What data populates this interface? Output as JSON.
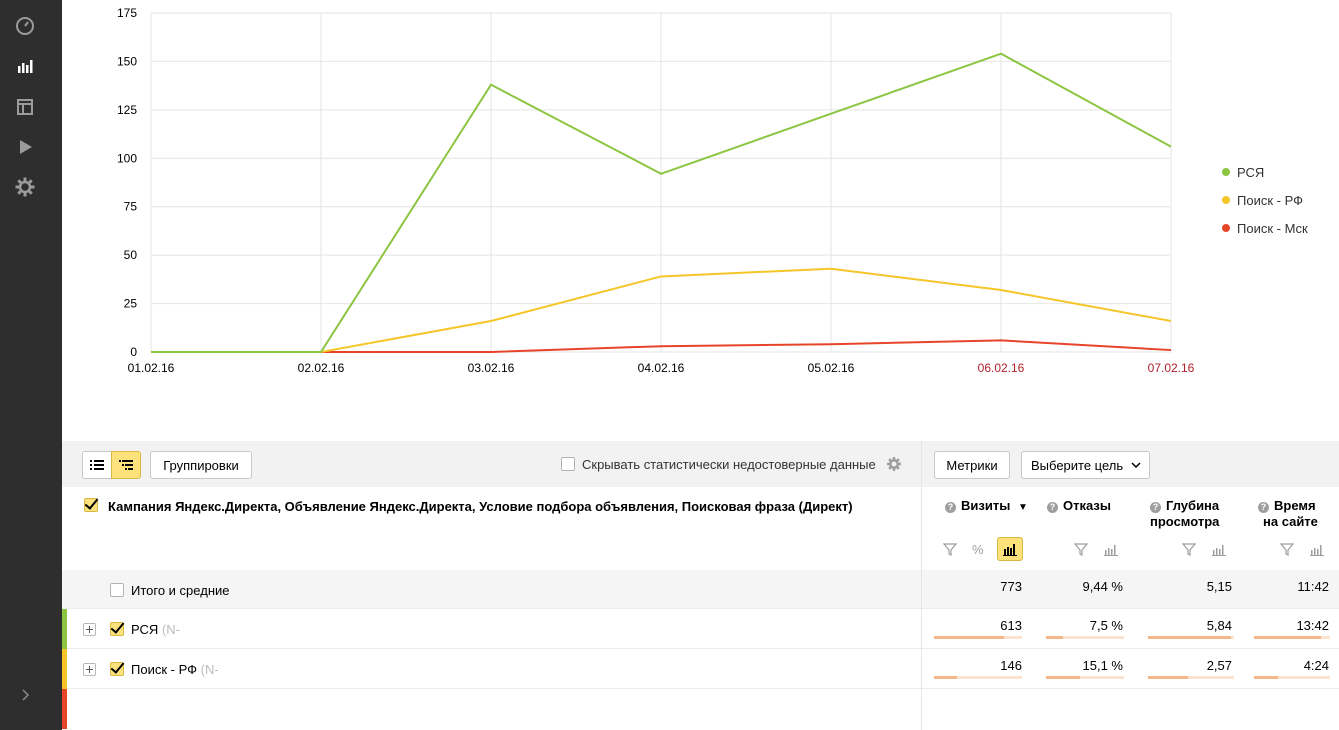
{
  "sidebar": {
    "icons": [
      "dashboard-icon",
      "reports-icon",
      "layout-icon",
      "play-icon",
      "gear-icon",
      "chevron-right-icon"
    ]
  },
  "chart_data": {
    "type": "line",
    "x": [
      "01.02.16",
      "02.02.16",
      "03.02.16",
      "04.02.16",
      "05.02.16",
      "06.02.16",
      "07.02.16"
    ],
    "x_label_colors": [
      "#000000",
      "#000000",
      "#000000",
      "#000000",
      "#000000",
      "#b0212b",
      "#b0212b"
    ],
    "ylim": [
      0,
      175
    ],
    "yticks": [
      "0",
      "25",
      "50",
      "75",
      "100",
      "125",
      "150",
      "175"
    ],
    "grid": true,
    "legend_position": "right",
    "series": [
      {
        "name": "РСЯ",
        "color": "#8cc541",
        "values": [
          0,
          0,
          138,
          92,
          123,
          154,
          106
        ]
      },
      {
        "name": "Поиск - РФ",
        "color": "#f5c629",
        "values": [
          0,
          0,
          16,
          39,
          43,
          32,
          16
        ]
      },
      {
        "name": "Поиск - Мск",
        "color": "#e7452a",
        "values": [
          0,
          0,
          0,
          3,
          4,
          6,
          1
        ]
      }
    ]
  },
  "toolbar": {
    "groupings_label": "Группировки",
    "hide_unreliable_label": "Скрывать статистически недостоверные данные",
    "metrics_label": "Метрики",
    "goal_label": "Выберите цель"
  },
  "table": {
    "dimensions_header": "Кампания Яндекс.Директа, Объявление Яндекс.Директа, Условие подбора объявления, Поисковая фраза (Директ)",
    "metrics": [
      {
        "line1": "Визиты",
        "line2": "",
        "sort": "▼"
      },
      {
        "line1": "Отказы",
        "line2": "",
        "sort": ""
      },
      {
        "line1": "Глубина",
        "line2": "просмотра",
        "sort": ""
      },
      {
        "line1": "Время",
        "line2": "на сайте",
        "sort": ""
      }
    ],
    "totals": {
      "label": "Итого и средние",
      "values": [
        "773",
        "9,44 %",
        "5,15",
        "11:42"
      ]
    },
    "rows": [
      {
        "label": "РСЯ",
        "suffix": "(N-",
        "color": "#8cc541",
        "values": [
          "613",
          "7,5 %",
          "5,84",
          "13:42"
        ],
        "fractions": [
          0.79,
          0.22,
          0.96,
          0.88
        ]
      },
      {
        "label": "Поиск - РФ",
        "suffix": "(N-",
        "color": "#f5c629",
        "values": [
          "146",
          "15,1 %",
          "2,57",
          "4:24"
        ],
        "fractions": [
          0.26,
          0.44,
          0.46,
          0.32
        ]
      }
    ],
    "extra_row_color": "#e7452a"
  }
}
